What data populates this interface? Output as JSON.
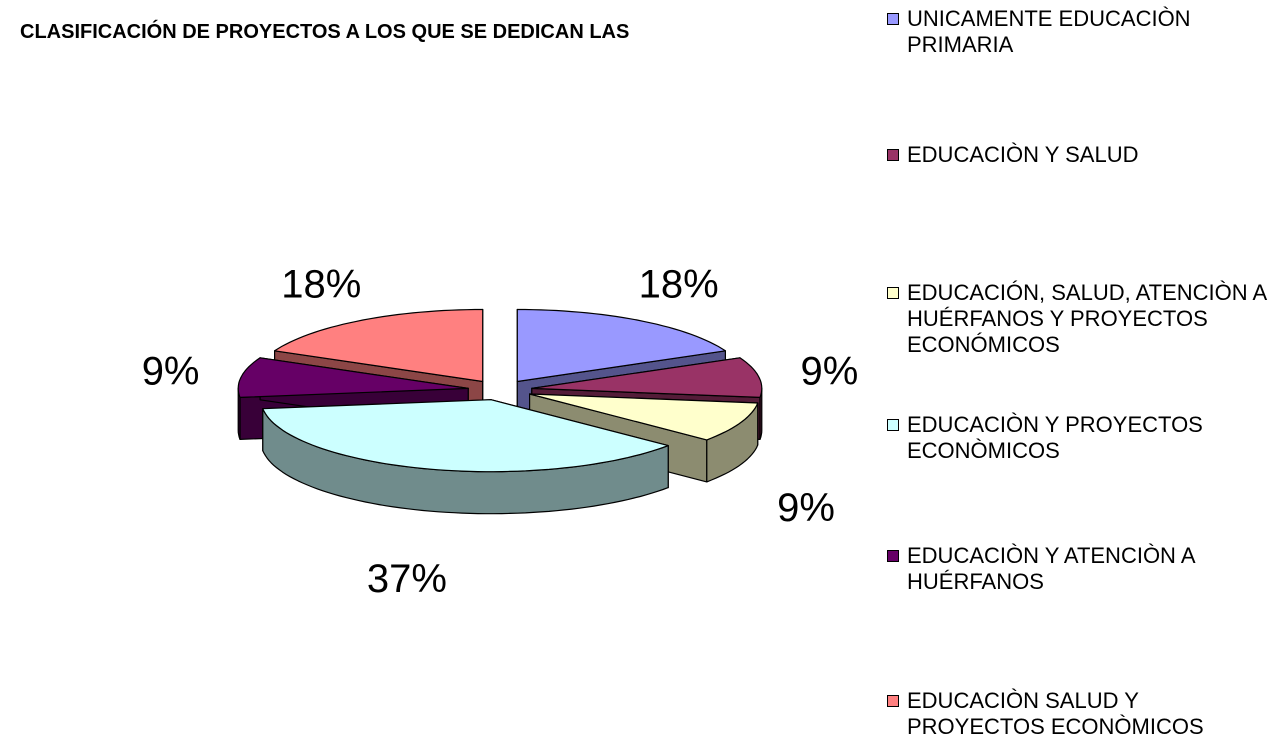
{
  "chart_data": {
    "type": "pie3d",
    "title": "CLASIFICACIÓN DE PROYECTOS A LOS QUE SE DEDICAN LAS",
    "categories": [
      "UNICAMENTE EDUCACIÒN PRIMARIA",
      "EDUCACIÒN Y SALUD",
      "EDUCACIÓN, SALUD, ATENCIÒN A HUÉRFANOS Y PROYECTOS ECONÓMICOS",
      "EDUCACIÒN Y PROYECTOS ECONÒMICOS",
      "EDUCACIÒN Y ATENCIÒN A HUÉRFANOS",
      "EDUCACIÒN SALUD  Y PROYECTOS ECONÒMICOS"
    ],
    "values": [
      18,
      9,
      9,
      37,
      9,
      18
    ],
    "value_labels": [
      "18%",
      "9%",
      "9%",
      "37%",
      "9%",
      "18%"
    ],
    "colors": [
      "#9999ff",
      "#993366",
      "#ffffcc",
      "#ccffff",
      "#660066",
      "#ff8080"
    ],
    "legend": "right"
  }
}
